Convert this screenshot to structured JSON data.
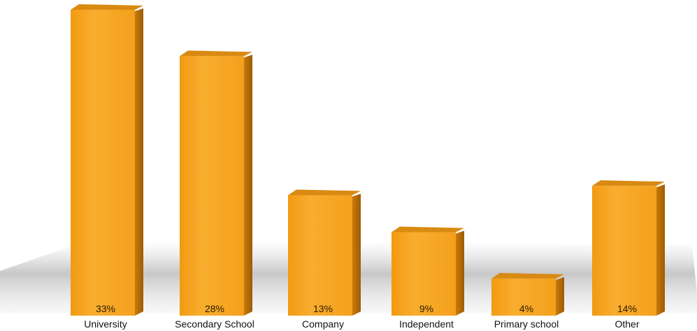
{
  "chart_data": {
    "type": "bar",
    "title": "",
    "xlabel": "",
    "ylabel": "",
    "categories": [
      "University",
      "Secondary School",
      "Company",
      "Independent",
      "Primary school",
      "Other"
    ],
    "values": [
      33,
      28,
      13,
      9,
      4,
      14
    ],
    "value_labels": [
      "33%",
      "28%",
      "13%",
      "9%",
      "4%",
      "14%"
    ],
    "ylim": [
      0,
      33
    ],
    "style": "3d",
    "grid": false,
    "legend": "none",
    "colors": {
      "bar_front": "#F7A51F",
      "bar_front_light": "#FBB63A",
      "bar_side": "#B86F08",
      "bar_top": "#D98A12",
      "shadow": "#9a9a9a"
    }
  }
}
